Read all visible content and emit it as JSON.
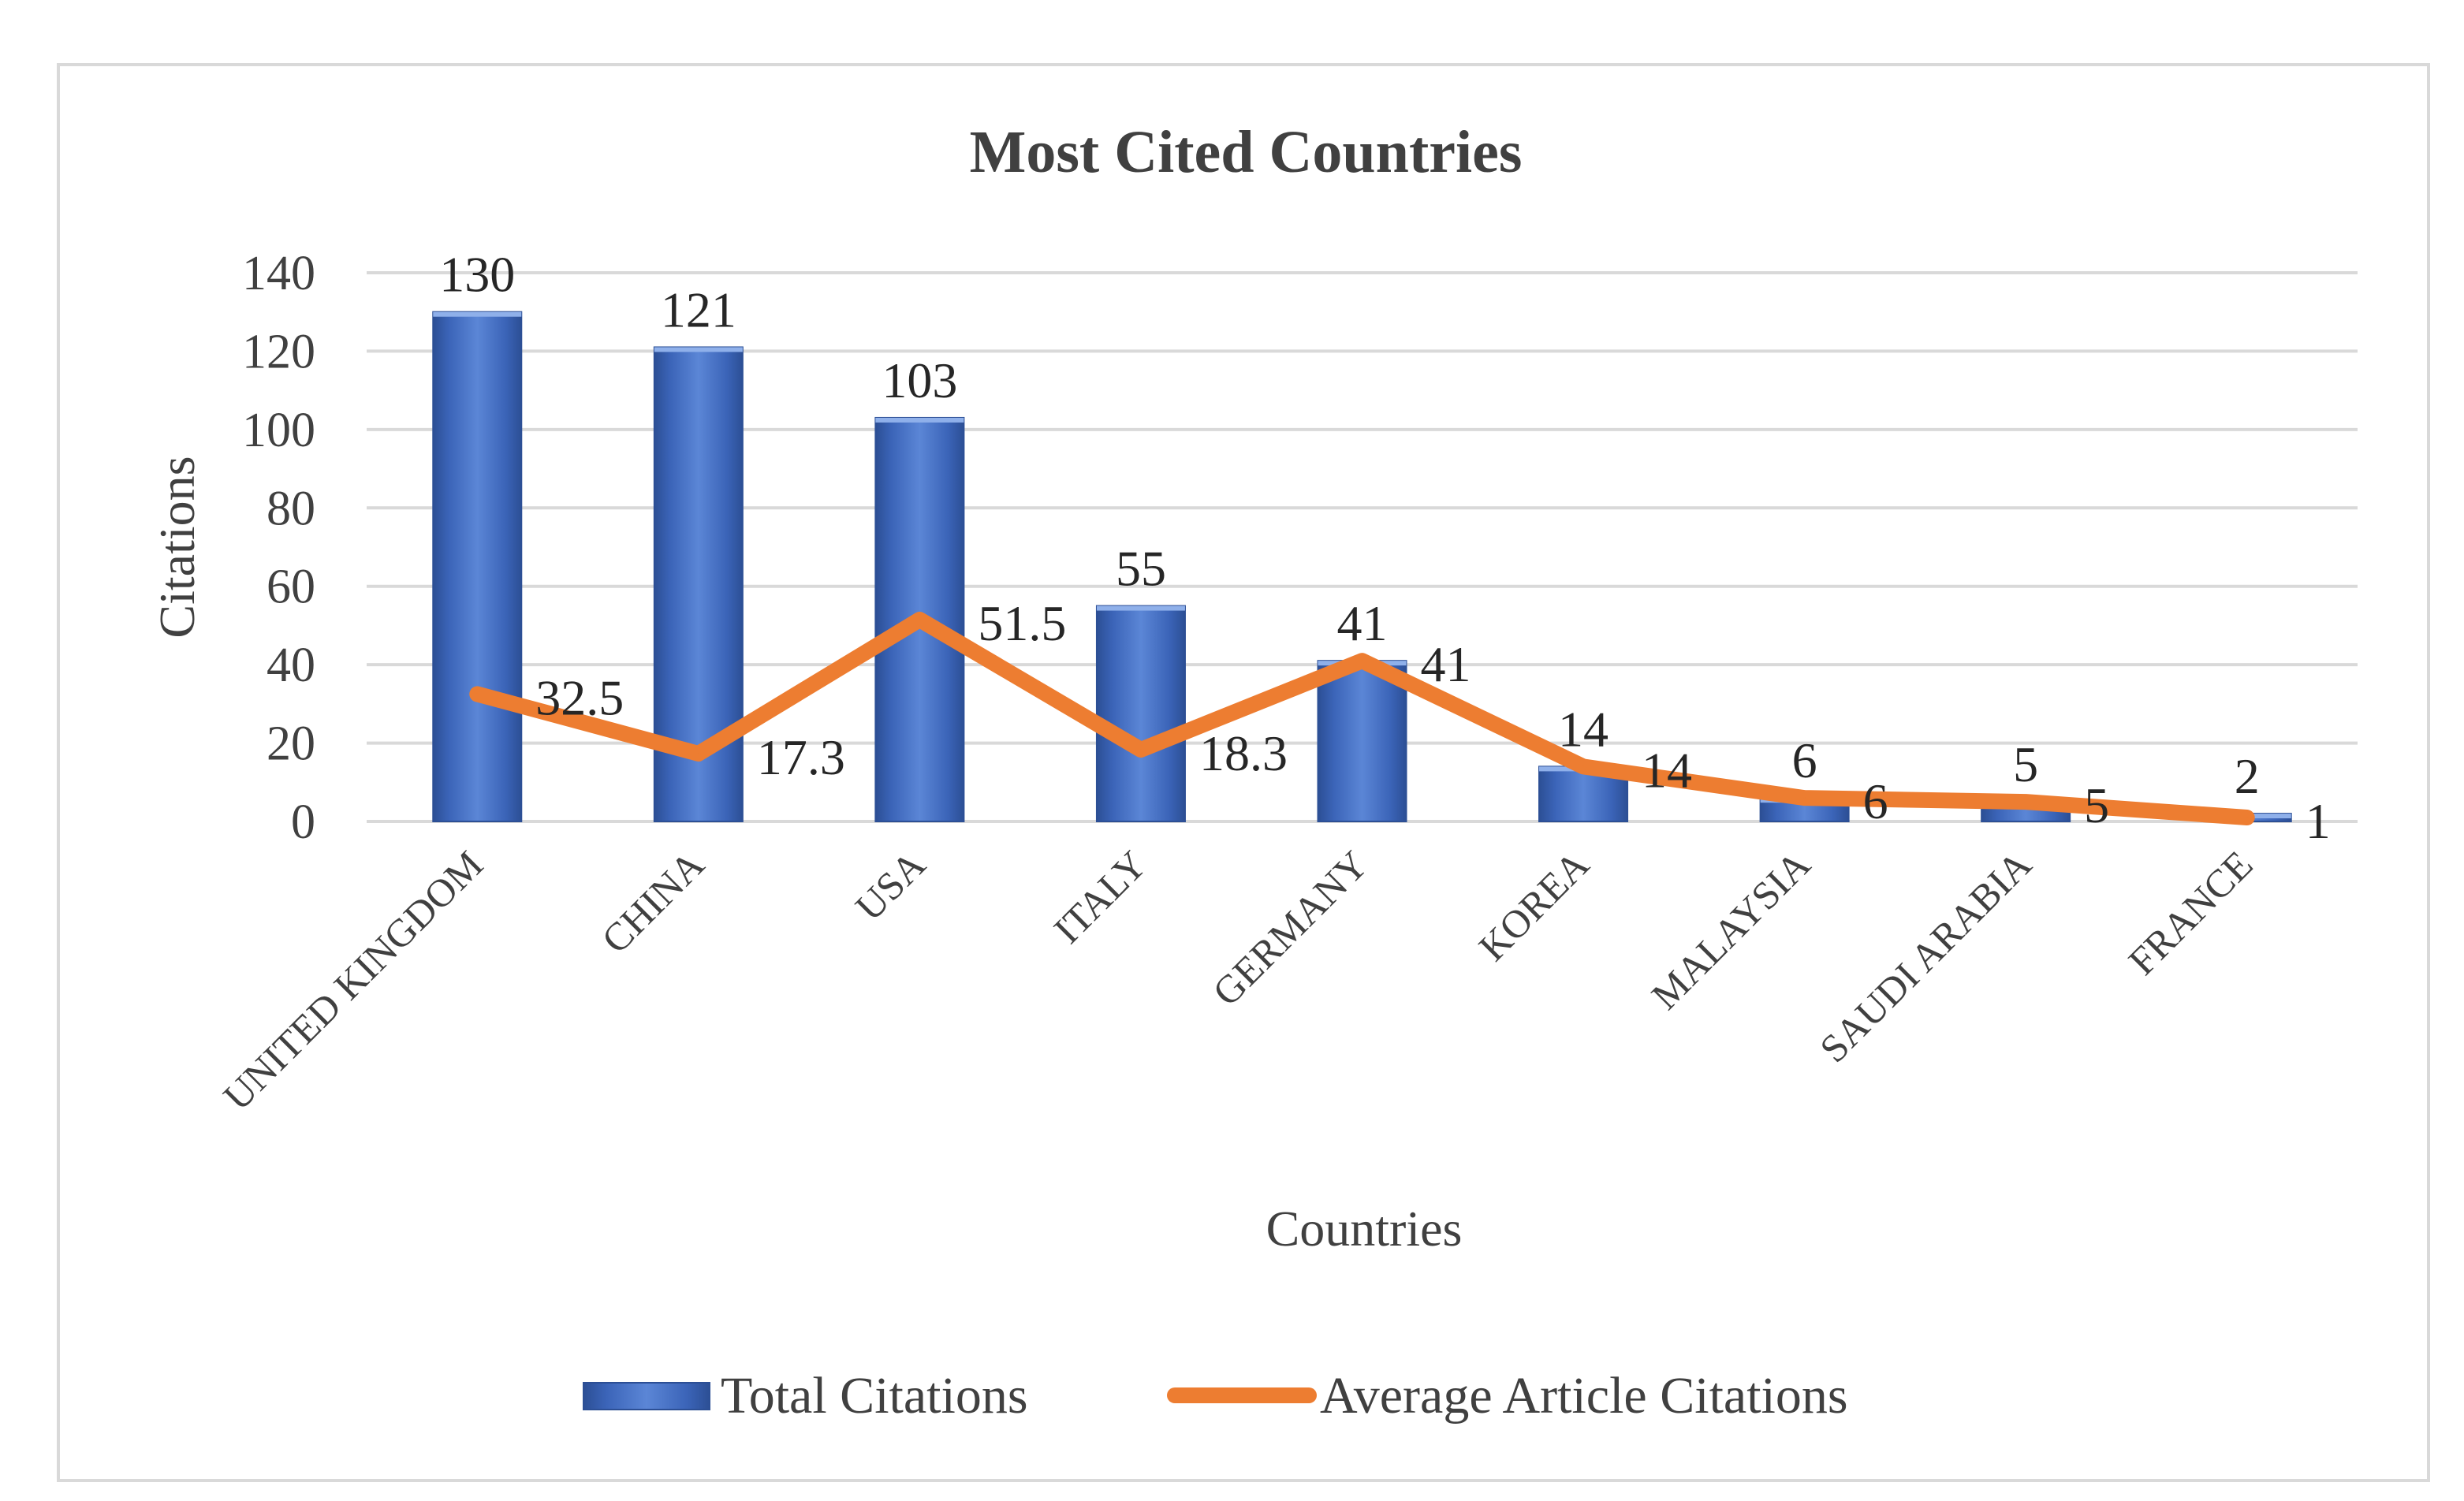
{
  "chart_data": {
    "type": "bar",
    "title": "Most Cited Countries",
    "xlabel": "Countries",
    "ylabel": "Citations",
    "ylim": [
      0,
      140
    ],
    "yticks": [
      "0",
      "20",
      "40",
      "60",
      "80",
      "100",
      "120",
      "140"
    ],
    "grid": true,
    "legend_position": "bottom",
    "categories": [
      "UNITED KINGDOM",
      "CHINA",
      "USA",
      "ITALY",
      "GERMANY",
      "KOREA",
      "MALAYSIA",
      "SAUDI ARABIA",
      "FRANCE"
    ],
    "series": [
      {
        "name": "Total Citations",
        "kind": "bar",
        "color": "#4472C4",
        "values": [
          130,
          121,
          103,
          55,
          41,
          14,
          6,
          5,
          2
        ],
        "labels": [
          "130",
          "121",
          "103",
          "55",
          "41",
          "14",
          "6",
          "5",
          "2"
        ]
      },
      {
        "name": "Average Article Citations",
        "kind": "line",
        "color": "#ED7D31",
        "values": [
          32.5,
          17.3,
          51.5,
          18.3,
          41,
          14,
          6,
          5,
          1
        ],
        "labels": [
          "32.5",
          "17.3",
          "51.5",
          "18.3",
          "41",
          "14",
          "6",
          "5",
          "1"
        ]
      }
    ]
  }
}
